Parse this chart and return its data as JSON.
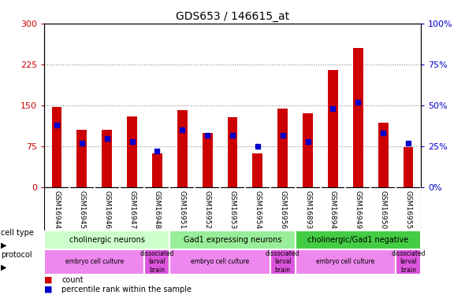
{
  "title": "GDS653 / 146615_at",
  "samples": [
    "GSM16944",
    "GSM16945",
    "GSM16946",
    "GSM16947",
    "GSM16948",
    "GSM16951",
    "GSM16952",
    "GSM16953",
    "GSM16954",
    "GSM16956",
    "GSM16893",
    "GSM16894",
    "GSM16949",
    "GSM16950",
    "GSM16955"
  ],
  "count_values": [
    147,
    105,
    105,
    130,
    62,
    142,
    100,
    128,
    62,
    145,
    135,
    215,
    255,
    118,
    73
  ],
  "percentile_values": [
    38,
    27,
    30,
    28,
    22,
    35,
    32,
    32,
    25,
    32,
    28,
    48,
    52,
    33,
    27
  ],
  "ylim_left": [
    0,
    300
  ],
  "ylim_right": [
    0,
    100
  ],
  "yticks_left": [
    0,
    75,
    150,
    225,
    300
  ],
  "yticks_right": [
    0,
    25,
    50,
    75,
    100
  ],
  "bar_color": "#cc0000",
  "dot_color": "#0000cc",
  "cell_type_groups": [
    {
      "label": "cholinergic neurons",
      "start": 0,
      "end": 5,
      "color": "#ccffcc"
    },
    {
      "label": "Gad1 expressing neurons",
      "start": 5,
      "end": 10,
      "color": "#99ee99"
    },
    {
      "label": "cholinergic/Gad1 negative",
      "start": 10,
      "end": 15,
      "color": "#44cc44"
    }
  ],
  "protocol_groups": [
    {
      "label": "embryo cell culture",
      "start": 0,
      "end": 4,
      "color": "#ee88ee"
    },
    {
      "label": "dissociated\nlarval\nbrain",
      "start": 4,
      "end": 5,
      "color": "#dd55dd"
    },
    {
      "label": "embryo cell culture",
      "start": 5,
      "end": 9,
      "color": "#ee88ee"
    },
    {
      "label": "dissociated\nlarval\nbrain",
      "start": 9,
      "end": 10,
      "color": "#dd55dd"
    },
    {
      "label": "embryo cell culture",
      "start": 10,
      "end": 14,
      "color": "#ee88ee"
    },
    {
      "label": "dissociated\nlarval\nbrain",
      "start": 14,
      "end": 15,
      "color": "#dd55dd"
    }
  ],
  "legend_count_color": "#cc0000",
  "legend_pct_color": "#0000cc",
  "grid_color": "#888888",
  "plot_bg": "#ffffff",
  "left_label_color": "#cc0000",
  "right_label_color": "#0000cc",
  "tick_label_bg": "#cccccc"
}
